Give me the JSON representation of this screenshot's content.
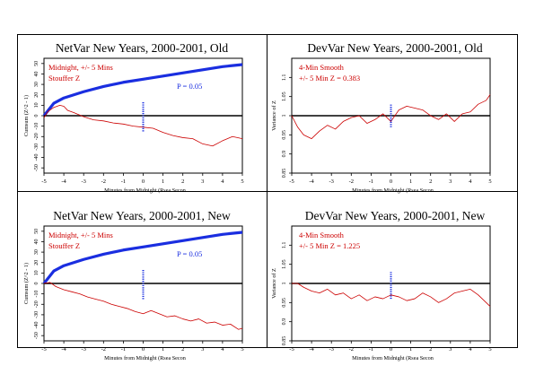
{
  "chart_data": [
    {
      "type": "line",
      "title": "NetVar New Years, 2000-2001, Old",
      "xlabel": "Minutes from Midnight (Rsea Secon",
      "ylabel": "Cumsum (Z^2 - 1)",
      "annotations": [
        "Midnight, +/- 5 Mins",
        "Stouffer Z"
      ],
      "p_label": "P = 0.05",
      "xlim": [
        -5,
        5
      ],
      "ylim": [
        -55,
        55
      ],
      "x_ticks": [
        "-5",
        "-4",
        "-3",
        "-2",
        "-1",
        "0",
        "1",
        "2",
        "3",
        "4",
        "5"
      ],
      "y_ticks": [
        "-50",
        "-40",
        "-30",
        "-20",
        "-10",
        "0",
        "10",
        "20",
        "30",
        "40",
        "50"
      ],
      "reference_line": 0,
      "envelope": {
        "name": "P = 0.05",
        "x": [
          -5,
          -4.5,
          -4,
          -3,
          -2,
          -1,
          0,
          1,
          2,
          3,
          4,
          5
        ],
        "y": [
          0,
          12,
          17,
          23,
          28,
          32,
          35,
          38,
          41,
          44,
          47,
          49
        ]
      },
      "series": [
        {
          "x": [
            -5,
            -4.8,
            -4.5,
            -4.2,
            -4,
            -3.8,
            -3.5,
            -3,
            -2.5,
            -2,
            -1.5,
            -1,
            -0.5,
            0,
            0.5,
            1,
            1.5,
            2,
            2.5,
            3,
            3.5,
            4,
            4.5,
            5
          ],
          "y": [
            -2,
            4,
            8,
            10,
            9,
            5,
            3,
            -1,
            -4,
            -5,
            -7,
            -8,
            -10,
            -11,
            -12,
            -16,
            -19,
            -21,
            -22,
            -27,
            -29,
            -24,
            -20,
            -22
          ]
        }
      ],
      "midnight_marker_y": [
        -15,
        13
      ]
    },
    {
      "type": "line",
      "title": "DevVar New Years, 2000-2001, Old",
      "xlabel": "Minutes from Midnight (Rsea Secon",
      "ylabel": "Variance of Z",
      "annotations": [
        "4-Min Smooth",
        "+/- 5 Min Z = 0.383"
      ],
      "xlim": [
        -5,
        5
      ],
      "ylim": [
        0.85,
        1.15
      ],
      "x_ticks": [
        "-5",
        "-4",
        "-3",
        "-2",
        "-1",
        "0",
        "1",
        "2",
        "3",
        "4",
        "5"
      ],
      "y_ticks": [
        "0.85",
        "0.9",
        "0.95",
        "1",
        "1.05",
        "1.1"
      ],
      "reference_line": 1,
      "series": [
        {
          "x": [
            -5,
            -4.7,
            -4.4,
            -4,
            -3.6,
            -3.2,
            -2.8,
            -2.4,
            -2,
            -1.6,
            -1.2,
            -0.8,
            -0.4,
            0,
            0.4,
            0.8,
            1.2,
            1.6,
            2,
            2.4,
            2.8,
            3.2,
            3.6,
            4,
            4.4,
            4.8,
            5
          ],
          "y": [
            1.0,
            0.97,
            0.95,
            0.94,
            0.96,
            0.975,
            0.965,
            0.985,
            0.995,
            1.0,
            0.98,
            0.99,
            1.005,
            0.985,
            1.015,
            1.025,
            1.02,
            1.015,
            1.0,
            0.99,
            1.005,
            0.985,
            1.005,
            1.01,
            1.03,
            1.04,
            1.055
          ]
        }
      ],
      "midnight_marker_y": [
        0.97,
        1.03
      ]
    },
    {
      "type": "line",
      "title": "NetVar New Years, 2000-2001, New",
      "xlabel": "Minutes from Midnight (Rsea Secon",
      "ylabel": "Cumsum (Z^2 - 1)",
      "annotations": [
        "Midnight, +/- 5 Mins",
        "Stouffer Z"
      ],
      "p_label": "P = 0.05",
      "xlim": [
        -5,
        5
      ],
      "ylim": [
        -55,
        55
      ],
      "x_ticks": [
        "-5",
        "-4",
        "-3",
        "-2",
        "-1",
        "0",
        "1",
        "2",
        "3",
        "4",
        "5"
      ],
      "y_ticks": [
        "-50",
        "-40",
        "-30",
        "-20",
        "-10",
        "0",
        "10",
        "20",
        "30",
        "40",
        "50"
      ],
      "reference_line": 0,
      "envelope": {
        "name": "P = 0.05",
        "x": [
          -5,
          -4.5,
          -4,
          -3,
          -2,
          -1,
          0,
          1,
          2,
          3,
          4,
          5
        ],
        "y": [
          0,
          12,
          17,
          23,
          28,
          32,
          35,
          38,
          41,
          44,
          47,
          49
        ]
      },
      "series": [
        {
          "x": [
            -5,
            -4.7,
            -4.4,
            -4,
            -3.6,
            -3.2,
            -2.8,
            -2.4,
            -2,
            -1.6,
            -1.2,
            -0.8,
            -0.4,
            0,
            0.4,
            0.8,
            1.2,
            1.6,
            2,
            2.4,
            2.8,
            3.2,
            3.6,
            4,
            4.4,
            4.8,
            5
          ],
          "y": [
            0,
            1,
            -3,
            -6,
            -8,
            -10,
            -13,
            -15,
            -17,
            -20,
            -22,
            -24,
            -27,
            -29,
            -26,
            -29,
            -32,
            -31,
            -34,
            -36,
            -34,
            -38,
            -37,
            -40,
            -39,
            -44,
            -43
          ]
        }
      ],
      "midnight_marker_y": [
        -15,
        13
      ]
    },
    {
      "type": "line",
      "title": "DevVar New Years, 2000-2001, New",
      "xlabel": "Minutes from Midnight (Rsea Secon",
      "ylabel": "Variance of Z",
      "annotations": [
        "4-Min Smooth",
        "+/- 5 Min Z = 1.225"
      ],
      "xlim": [
        -5,
        5
      ],
      "ylim": [
        0.85,
        1.15
      ],
      "x_ticks": [
        "-5",
        "-4",
        "-3",
        "-2",
        "-1",
        "0",
        "1",
        "2",
        "3",
        "4",
        "5"
      ],
      "y_ticks": [
        "0.85",
        "0.9",
        "0.95",
        "1",
        "1.05",
        "1.1"
      ],
      "reference_line": 1,
      "series": [
        {
          "x": [
            -5,
            -4.7,
            -4.4,
            -4,
            -3.6,
            -3.2,
            -2.8,
            -2.4,
            -2,
            -1.6,
            -1.2,
            -0.8,
            -0.4,
            0,
            0.4,
            0.8,
            1.2,
            1.6,
            2,
            2.4,
            2.8,
            3.2,
            3.6,
            4,
            4.4,
            4.8,
            5
          ],
          "y": [
            1.0,
            1.0,
            0.99,
            0.98,
            0.975,
            0.985,
            0.97,
            0.975,
            0.96,
            0.97,
            0.955,
            0.965,
            0.96,
            0.97,
            0.965,
            0.955,
            0.96,
            0.975,
            0.965,
            0.95,
            0.96,
            0.975,
            0.98,
            0.985,
            0.97,
            0.95,
            0.94
          ]
        }
      ],
      "midnight_marker_y": [
        0.96,
        1.03
      ]
    }
  ],
  "colors": {
    "frame": "#000000",
    "data": "#cc0000",
    "envelope": "#1a2ee0",
    "marker": "#1a2ee0",
    "annotation": "#cc0000",
    "p_label": "#1a2ee0"
  }
}
